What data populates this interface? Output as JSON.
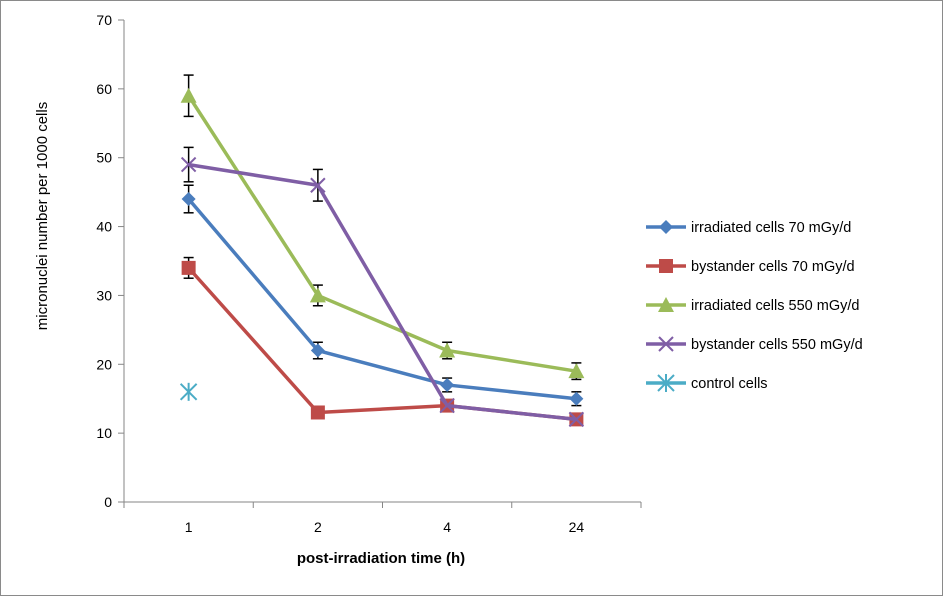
{
  "chart_data": {
    "type": "line",
    "title": "",
    "xlabel": "post-irradiation time (h)",
    "ylabel": "micronuclei number per 1000 cells",
    "categories": [
      "1",
      "2",
      "4",
      "24"
    ],
    "ylim": [
      0,
      70
    ],
    "yticks": [
      0,
      10,
      20,
      30,
      40,
      50,
      60,
      70
    ],
    "grid": false,
    "legend_position": "right",
    "series": [
      {
        "name": "irradiated cells 70 mGy/d",
        "color": "#4a7dbd",
        "marker": "diamond",
        "values": [
          44,
          22,
          17,
          15
        ],
        "errors": [
          2,
          1.2,
          1,
          1
        ]
      },
      {
        "name": "bystander cells 70 mGy/d",
        "color": "#be4b48",
        "marker": "square",
        "values": [
          34,
          13,
          14,
          12
        ],
        "errors": [
          1.5,
          0,
          0.8,
          0.8
        ]
      },
      {
        "name": "irradiated cells 550 mGy/d",
        "color": "#9bbb59",
        "marker": "triangle",
        "values": [
          59,
          30,
          22,
          19
        ],
        "errors": [
          3,
          1.5,
          1.2,
          1.2
        ]
      },
      {
        "name": "bystander cells 550 mGy/d",
        "color": "#7f5ea5",
        "marker": "x",
        "values": [
          49,
          46,
          14,
          12
        ],
        "errors": [
          2.5,
          2.3,
          0.8,
          0.8
        ]
      },
      {
        "name": "control cells",
        "color": "#4bacc6",
        "marker": "star",
        "values": [
          16,
          null,
          null,
          null
        ],
        "errors": [
          0,
          0,
          0,
          0
        ]
      }
    ]
  }
}
